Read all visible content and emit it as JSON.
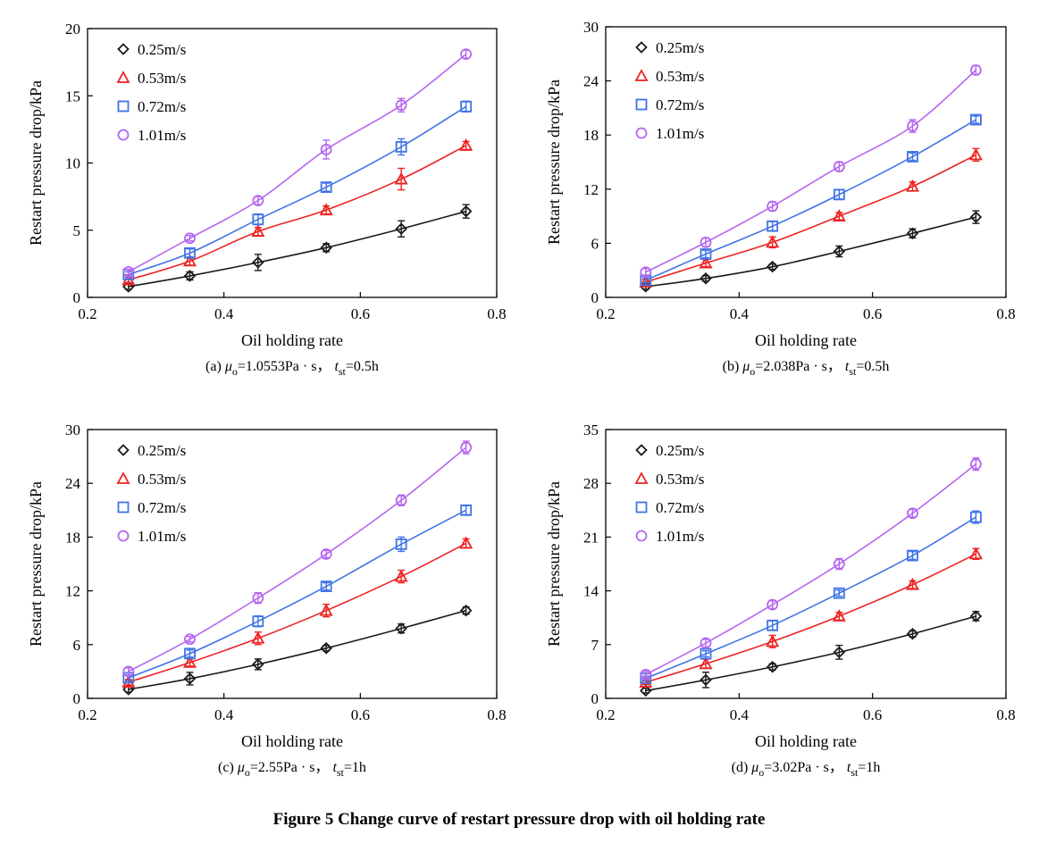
{
  "figure_title": "Figure 5 Change curve of restart pressure drop with oil holding rate",
  "chart_data": [
    {
      "id": "a",
      "type": "line",
      "caption": {
        "prefix": "(a) ",
        "mu": "μ",
        "mu_sub": "o",
        "mu_rest": "=1.0553Pa · s， ",
        "t": "t",
        "t_sub": "st",
        "t_rest": "=0.5h"
      },
      "xlabel": "Oil holding rate",
      "ylabel": "Restart pressure drop/kPa",
      "xlim": [
        0.2,
        0.8
      ],
      "xticks": [
        "0.2",
        "0.4",
        "0.6",
        "0.8"
      ],
      "ylim": [
        0,
        20
      ],
      "yticks": [
        "0",
        "5",
        "10",
        "15",
        "20"
      ],
      "x": [
        0.26,
        0.35,
        0.45,
        0.55,
        0.66,
        0.755
      ],
      "series": [
        {
          "name": "0.25m/s",
          "marker": "diamond",
          "color": "#1a1a1a",
          "values": [
            0.8,
            1.6,
            2.6,
            3.7,
            5.1,
            6.4
          ],
          "errors": [
            0.2,
            0.3,
            0.6,
            0.3,
            0.6,
            0.5
          ]
        },
        {
          "name": "0.53m/s",
          "marker": "triangle",
          "color": "#ee2222",
          "values": [
            1.3,
            2.7,
            4.9,
            6.5,
            8.8,
            11.3
          ],
          "errors": [
            0.2,
            0.3,
            0.3,
            0.3,
            0.8,
            0.3
          ]
        },
        {
          "name": "0.72m/s",
          "marker": "square",
          "color": "#3f73e6",
          "values": [
            1.7,
            3.3,
            5.8,
            8.2,
            11.2,
            14.2
          ],
          "errors": [
            0.2,
            0.3,
            0.4,
            0.3,
            0.6,
            0.4
          ]
        },
        {
          "name": "1.01m/s",
          "marker": "circle",
          "color": "#b566f0",
          "values": [
            1.9,
            4.4,
            7.2,
            11.0,
            14.3,
            18.1
          ],
          "errors": [
            0.2,
            0.2,
            0.3,
            0.7,
            0.5,
            0.3
          ]
        }
      ]
    },
    {
      "id": "b",
      "type": "line",
      "caption": {
        "prefix": "(b) ",
        "mu": "μ",
        "mu_sub": "o",
        "mu_rest": "=2.038Pa · s， ",
        "t": "t",
        "t_sub": "st",
        "t_rest": "=0.5h"
      },
      "xlabel": "Oil holding rate",
      "ylabel": "Restart pressure drop/kPa",
      "xlim": [
        0.2,
        0.8
      ],
      "xticks": [
        "0.2",
        "0.4",
        "0.6",
        "0.8"
      ],
      "ylim": [
        0,
        30
      ],
      "yticks": [
        "0",
        "6",
        "12",
        "18",
        "24",
        "30"
      ],
      "x": [
        0.26,
        0.35,
        0.45,
        0.55,
        0.66,
        0.755
      ],
      "series": [
        {
          "name": "0.25m/s",
          "marker": "diamond",
          "color": "#1a1a1a",
          "values": [
            1.2,
            2.1,
            3.4,
            5.1,
            7.1,
            8.9
          ],
          "errors": [
            0.3,
            0.3,
            0.3,
            0.6,
            0.5,
            0.7
          ]
        },
        {
          "name": "0.53m/s",
          "marker": "triangle",
          "color": "#ee2222",
          "values": [
            1.7,
            3.8,
            6.1,
            9.0,
            12.3,
            15.8
          ],
          "errors": [
            0.3,
            0.4,
            0.6,
            0.4,
            0.5,
            0.7
          ]
        },
        {
          "name": "0.72m/s",
          "marker": "square",
          "color": "#3f73e6",
          "values": [
            1.9,
            4.8,
            7.9,
            11.4,
            15.6,
            19.7
          ],
          "errors": [
            0.3,
            0.4,
            0.5,
            0.5,
            0.4,
            0.4
          ]
        },
        {
          "name": "1.01m/s",
          "marker": "circle",
          "color": "#b566f0",
          "values": [
            2.8,
            6.1,
            10.1,
            14.5,
            19.0,
            25.2
          ],
          "errors": [
            0.4,
            0.5,
            0.5,
            0.5,
            0.7,
            0.5
          ]
        }
      ]
    },
    {
      "id": "c",
      "type": "line",
      "caption": {
        "prefix": "(c) ",
        "mu": "μ",
        "mu_sub": "o",
        "mu_rest": "=2.55Pa · s， ",
        "t": "t",
        "t_sub": "st",
        "t_rest": "=1h"
      },
      "xlabel": "Oil holding rate",
      "ylabel": "Restart pressure drop/kPa",
      "xlim": [
        0.2,
        0.8
      ],
      "xticks": [
        "0.2",
        "0.4",
        "0.6",
        "0.8"
      ],
      "ylim": [
        0,
        30
      ],
      "yticks": [
        "0",
        "6",
        "12",
        "18",
        "24",
        "30"
      ],
      "x": [
        0.26,
        0.35,
        0.45,
        0.55,
        0.66,
        0.755
      ],
      "series": [
        {
          "name": "0.25m/s",
          "marker": "diamond",
          "color": "#1a1a1a",
          "values": [
            1.0,
            2.2,
            3.8,
            5.6,
            7.8,
            9.8
          ],
          "errors": [
            0.3,
            0.7,
            0.6,
            0.3,
            0.5,
            0.4
          ]
        },
        {
          "name": "0.53m/s",
          "marker": "triangle",
          "color": "#ee2222",
          "values": [
            1.8,
            4.0,
            6.7,
            9.8,
            13.6,
            17.3
          ],
          "errors": [
            0.3,
            0.4,
            0.7,
            0.7,
            0.7,
            0.5
          ]
        },
        {
          "name": "0.72m/s",
          "marker": "square",
          "color": "#3f73e6",
          "values": [
            2.3,
            5.0,
            8.6,
            12.5,
            17.2,
            21.0
          ],
          "errors": [
            0.3,
            0.4,
            0.6,
            0.4,
            0.8,
            0.5
          ]
        },
        {
          "name": "1.01m/s",
          "marker": "circle",
          "color": "#b566f0",
          "values": [
            3.0,
            6.6,
            11.2,
            16.1,
            22.1,
            28.0
          ],
          "errors": [
            0.4,
            0.3,
            0.6,
            0.4,
            0.6,
            0.7
          ]
        }
      ]
    },
    {
      "id": "d",
      "type": "line",
      "caption": {
        "prefix": "(d) ",
        "mu": "μ",
        "mu_sub": "o",
        "mu_rest": "=3.02Pa · s， ",
        "t": "t",
        "t_sub": "st",
        "t_rest": "=1h"
      },
      "xlabel": "Oil holding rate",
      "ylabel": "Restart pressure drop/kPa",
      "xlim": [
        0.2,
        0.8
      ],
      "xticks": [
        "0.2",
        "0.4",
        "0.6",
        "0.8"
      ],
      "ylim": [
        0,
        35
      ],
      "yticks": [
        "0",
        "7",
        "14",
        "21",
        "28",
        "35"
      ],
      "x": [
        0.26,
        0.35,
        0.45,
        0.55,
        0.66,
        0.755
      ],
      "series": [
        {
          "name": "0.25m/s",
          "marker": "diamond",
          "color": "#1a1a1a",
          "values": [
            1.0,
            2.4,
            4.1,
            6.0,
            8.4,
            10.7
          ],
          "errors": [
            0.3,
            1.0,
            0.4,
            0.9,
            0.4,
            0.6
          ]
        },
        {
          "name": "0.53m/s",
          "marker": "triangle",
          "color": "#ee2222",
          "values": [
            2.1,
            4.5,
            7.4,
            10.7,
            14.8,
            18.8
          ],
          "errors": [
            0.3,
            0.6,
            0.8,
            0.5,
            0.5,
            0.7
          ]
        },
        {
          "name": "0.72m/s",
          "marker": "square",
          "color": "#3f73e6",
          "values": [
            2.6,
            5.8,
            9.5,
            13.7,
            18.6,
            23.6
          ],
          "errors": [
            0.3,
            0.4,
            0.6,
            0.4,
            0.5,
            0.8
          ]
        },
        {
          "name": "1.01m/s",
          "marker": "circle",
          "color": "#b566f0",
          "values": [
            3.1,
            7.2,
            12.2,
            17.5,
            24.1,
            30.5
          ],
          "errors": [
            0.4,
            0.5,
            0.5,
            0.7,
            0.5,
            0.8
          ]
        }
      ]
    }
  ]
}
